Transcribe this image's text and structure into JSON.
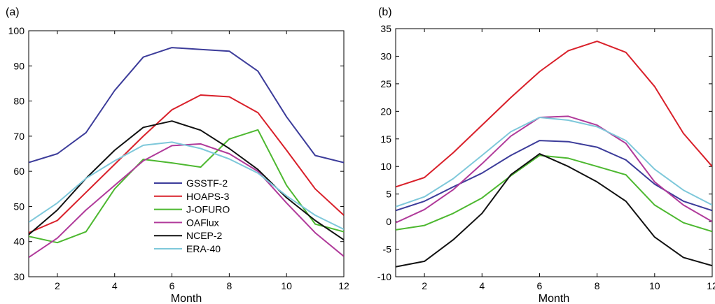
{
  "colors": {
    "GSSTF-2": "#3c3c9a",
    "HOAPS-3": "#d9202a",
    "J-OFURO": "#4db830",
    "OAFlux": "#b03a9a",
    "NCEP-2": "#111111",
    "ERA-40": "#7ec8da"
  },
  "chart_data": [
    {
      "type": "line",
      "panel_label": "(a)",
      "xlabel": "Month",
      "ylabel": "",
      "xlim": [
        1,
        12
      ],
      "ylim": [
        30,
        100
      ],
      "xticks": [
        2,
        4,
        6,
        8,
        10,
        12
      ],
      "yticks": [
        30,
        40,
        50,
        60,
        70,
        80,
        90,
        100
      ],
      "x": [
        1,
        2,
        3,
        4,
        5,
        6,
        7,
        8,
        9,
        10,
        11,
        12
      ],
      "legend": {
        "placement": "lower-center",
        "entries": [
          "GSSTF-2",
          "HOAPS-3",
          "J-OFURO",
          "OAFlux",
          "NCEP-2",
          "ERA-40"
        ]
      },
      "series": [
        {
          "name": "GSSTF-2",
          "values": [
            62.5,
            65,
            71,
            83,
            92.5,
            95.2,
            94.7,
            94.2,
            88.5,
            75.5,
            64.5,
            62.5
          ]
        },
        {
          "name": "HOAPS-3",
          "values": [
            42.5,
            46,
            54,
            62,
            70,
            77.5,
            81.7,
            81.2,
            76.7,
            66,
            55,
            47.5
          ]
        },
        {
          "name": "J-OFURO",
          "values": [
            41.5,
            39.7,
            42.8,
            55,
            63.4,
            62.4,
            61.2,
            69.2,
            71.8,
            56,
            45,
            42.8
          ]
        },
        {
          "name": "OAFlux",
          "values": [
            35.5,
            41,
            49,
            56,
            63,
            67.3,
            67.8,
            65,
            60,
            51,
            42.5,
            35.8
          ]
        },
        {
          "name": "NCEP-2",
          "values": [
            42,
            49,
            58,
            66,
            72.5,
            74.3,
            71.7,
            66.5,
            60.5,
            52.5,
            46,
            40.5
          ]
        },
        {
          "name": "ERA-40",
          "values": [
            45.5,
            51,
            58,
            63,
            67.4,
            68.3,
            66.5,
            63.5,
            59.5,
            53,
            47.5,
            43.5
          ]
        }
      ]
    },
    {
      "type": "line",
      "panel_label": "(b)",
      "xlabel": "Month",
      "ylabel": "",
      "xlim": [
        1,
        12
      ],
      "ylim": [
        -10,
        35
      ],
      "xticks": [
        2,
        4,
        6,
        8,
        10,
        12
      ],
      "yticks": [
        -10,
        -5,
        0,
        5,
        10,
        15,
        20,
        25,
        30,
        35
      ],
      "x": [
        1,
        2,
        3,
        4,
        5,
        6,
        7,
        8,
        9,
        10,
        11,
        12
      ],
      "series": [
        {
          "name": "GSSTF-2",
          "values": [
            2,
            3.7,
            6.3,
            8.8,
            12,
            14.7,
            14.5,
            13.5,
            11.2,
            6.8,
            3.7,
            2
          ]
        },
        {
          "name": "HOAPS-3",
          "values": [
            6.3,
            8,
            12.5,
            17.5,
            22.5,
            27.2,
            31,
            32.7,
            30.7,
            24.5,
            16,
            10
          ]
        },
        {
          "name": "J-OFURO",
          "values": [
            -1.5,
            -0.7,
            1.5,
            4.3,
            8.3,
            12,
            11.5,
            10,
            8.5,
            3,
            -0.2,
            -1.8
          ]
        },
        {
          "name": "OAFlux",
          "values": [
            -0.2,
            2.2,
            5.8,
            10.5,
            15.5,
            18.9,
            19.1,
            17.5,
            14.2,
            7.2,
            3,
            0
          ]
        },
        {
          "name": "NCEP-2",
          "values": [
            -8.2,
            -7.2,
            -3.3,
            1.5,
            8.5,
            12.3,
            10,
            7.2,
            3.7,
            -2.8,
            -6.5,
            -8
          ]
        },
        {
          "name": "ERA-40",
          "values": [
            2.7,
            4.5,
            7.8,
            12,
            16.3,
            18.9,
            18.4,
            17.2,
            14.7,
            9.5,
            5.7,
            3
          ]
        }
      ]
    }
  ]
}
